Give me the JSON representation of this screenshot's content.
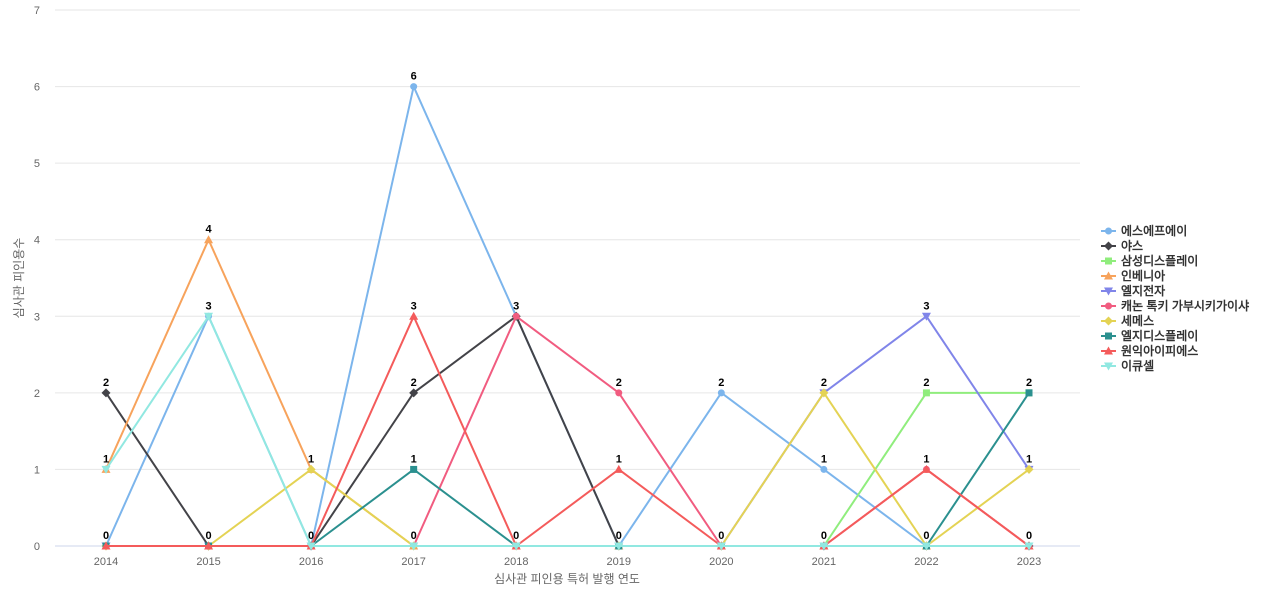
{
  "chart_data": {
    "type": "line",
    "title": "",
    "xlabel": "심사관 피인용 특허 발행 연도",
    "ylabel": "심사관 피인용수",
    "ylim": [
      0,
      7
    ],
    "y_ticks": [
      "0",
      "1",
      "2",
      "3",
      "4",
      "5",
      "6",
      "7"
    ],
    "categories": [
      "2014",
      "2015",
      "2016",
      "2017",
      "2018",
      "2019",
      "2020",
      "2021",
      "2022",
      "2023"
    ],
    "grid": true,
    "legend": "right",
    "series": [
      {
        "name": "에스에프에이",
        "color": "#7cb5ec",
        "marker": "circle",
        "values": [
          0,
          3,
          0,
          6,
          3,
          0,
          2,
          1,
          0,
          0
        ]
      },
      {
        "name": "야스",
        "color": "#434348",
        "marker": "diamond",
        "values": [
          2,
          0,
          0,
          2,
          3,
          0,
          0,
          0,
          0,
          0
        ]
      },
      {
        "name": "삼성디스플레이",
        "color": "#90ed7d",
        "marker": "square",
        "values": [
          0,
          0,
          0,
          0,
          0,
          0,
          0,
          0,
          2,
          2
        ]
      },
      {
        "name": "인베니아",
        "color": "#f7a35c",
        "marker": "triangle",
        "values": [
          1,
          4,
          1,
          0,
          0,
          0,
          0,
          0,
          0,
          0
        ]
      },
      {
        "name": "엘지전자",
        "color": "#8085e9",
        "marker": "triangle-down",
        "values": [
          0,
          0,
          0,
          0,
          0,
          0,
          0,
          2,
          3,
          1
        ]
      },
      {
        "name": "캐논 톡키 가부시키가이샤",
        "color": "#f15c80",
        "marker": "circle",
        "values": [
          0,
          0,
          0,
          0,
          3,
          2,
          0,
          0,
          1,
          0
        ]
      },
      {
        "name": "세메스",
        "color": "#e4d354",
        "marker": "diamond",
        "values": [
          0,
          0,
          1,
          0,
          0,
          0,
          0,
          2,
          0,
          1
        ]
      },
      {
        "name": "엘지디스플레이",
        "color": "#2b908f",
        "marker": "square",
        "values": [
          0,
          0,
          0,
          1,
          0,
          0,
          0,
          0,
          0,
          2
        ]
      },
      {
        "name": "원익아이피에스",
        "color": "#f45b5b",
        "marker": "triangle",
        "values": [
          0,
          0,
          0,
          3,
          0,
          1,
          0,
          0,
          1,
          0
        ]
      },
      {
        "name": "이큐셀",
        "color": "#91e8e1",
        "marker": "triangle-down",
        "values": [
          1,
          3,
          0,
          0,
          0,
          0,
          0,
          0,
          0,
          0
        ]
      }
    ],
    "data_labels": {
      "2014": [
        "2",
        "1",
        "0"
      ],
      "2015": [
        "4",
        "3",
        "0"
      ],
      "2016": [
        "1",
        "0"
      ],
      "2017": [
        "6",
        "3",
        "2",
        "1",
        "0"
      ],
      "2018": [
        "3",
        "0"
      ],
      "2019": [
        "2",
        "1",
        "0"
      ],
      "2020": [
        "2",
        "0"
      ],
      "2021": [
        "2",
        "1",
        "0"
      ],
      "2022": [
        "3",
        "2",
        "1",
        "0"
      ],
      "2023": [
        "2",
        "1",
        "0"
      ]
    }
  }
}
